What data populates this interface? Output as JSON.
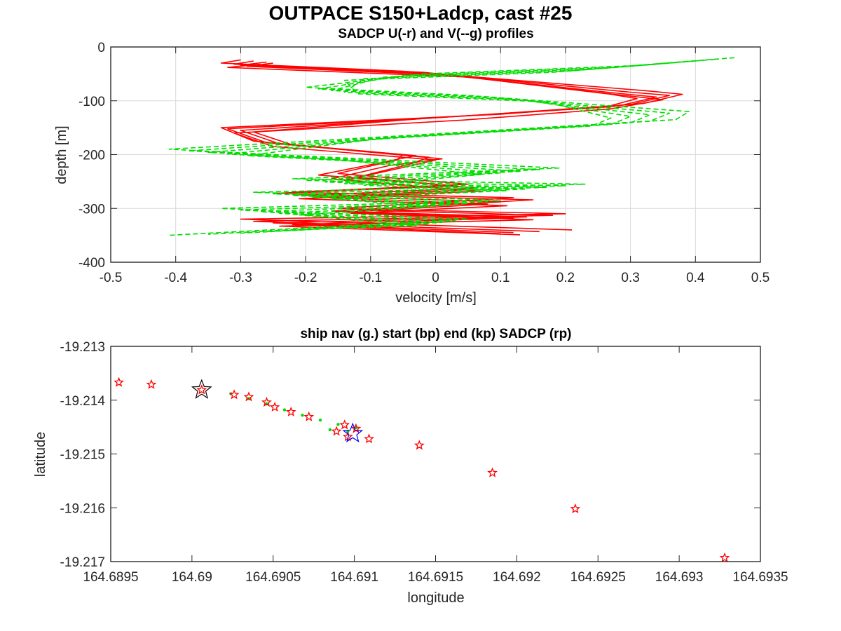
{
  "figure": {
    "title": "OUTPACE S150+Ladcp, cast #25"
  },
  "chart_data": [
    {
      "type": "line",
      "title": "SADCP U(-r) and V(--g) profiles",
      "xlabel": "velocity [m/s]",
      "ylabel": "depth [m]",
      "xlim": [
        -0.5,
        0.5
      ],
      "ylim": [
        -400,
        0
      ],
      "xticks": [
        -0.5,
        -0.4,
        -0.3,
        -0.2,
        -0.1,
        0,
        0.1,
        0.2,
        0.3,
        0.4,
        0.5
      ],
      "xtick_labels": [
        "-0.5",
        "-0.4",
        "-0.3",
        "-0.2",
        "-0.1",
        "0",
        "0.1",
        "0.2",
        "0.3",
        "0.4",
        "0.5"
      ],
      "yticks": [
        0,
        -100,
        -200,
        -300,
        -400
      ],
      "ytick_labels": [
        "0",
        "-100",
        "-200",
        "-300",
        "-400"
      ],
      "grid": true,
      "series": [
        {
          "name": "U",
          "color": "#ff0000",
          "dash": "solid",
          "profiles": [
            {
              "velocity": [
                -0.3,
                -0.33,
                -0.05,
                0.33,
                0.38,
                0.32,
                0.1,
                -0.33,
                -0.28,
                -0.05,
                -0.06,
                -0.15,
                0.05,
                -0.22,
                0.12,
                -0.15,
                0.2,
                -0.3,
                0.21
              ],
              "depth": [
                -24,
                -30,
                -45,
                -82,
                -88,
                -105,
                -125,
                -150,
                -175,
                -200,
                -210,
                -235,
                -255,
                -270,
                -280,
                -300,
                -310,
                -320,
                -340
              ]
            },
            {
              "velocity": [
                -0.28,
                -0.31,
                -0.02,
                0.3,
                0.36,
                0.3,
                0.06,
                -0.32,
                -0.26,
                -0.03,
                -0.08,
                -0.18,
                0.03,
                -0.25,
                0.15,
                -0.12,
                0.18,
                -0.28,
                0.16
              ],
              "depth": [
                -26,
                -32,
                -47,
                -84,
                -90,
                -107,
                -127,
                -152,
                -178,
                -202,
                -214,
                -238,
                -258,
                -272,
                -284,
                -303,
                -313,
                -324,
                -343
              ]
            },
            {
              "velocity": [
                -0.26,
                -0.3,
                0.0,
                0.28,
                0.34,
                0.28,
                0.02,
                -0.3,
                -0.24,
                -0.01,
                -0.04,
                -0.12,
                0.06,
                -0.2,
                0.1,
                -0.16,
                0.14,
                -0.25,
                0.12
              ],
              "depth": [
                -28,
                -34,
                -50,
                -86,
                -93,
                -110,
                -130,
                -155,
                -180,
                -205,
                -218,
                -242,
                -262,
                -276,
                -288,
                -305,
                -316,
                -327,
                -345
              ]
            },
            {
              "velocity": [
                -0.25,
                -0.29,
                0.03,
                0.27,
                0.31,
                0.26,
                -0.02,
                -0.28,
                -0.22,
                0.01,
                -0.07,
                -0.16,
                0.04,
                -0.18,
                0.08,
                -0.14,
                0.12,
                -0.22,
                0.1
              ],
              "depth": [
                -30,
                -36,
                -53,
                -88,
                -96,
                -112,
                -133,
                -158,
                -182,
                -208,
                -220,
                -245,
                -266,
                -279,
                -292,
                -307,
                -318,
                -330,
                -347
              ]
            },
            {
              "velocity": [
                -0.27,
                -0.32,
                0.05,
                0.29,
                0.35,
                0.27,
                0.04,
                -0.31,
                -0.25,
                0.0,
                -0.05,
                -0.14,
                0.07,
                -0.21,
                0.11,
                -0.13,
                0.15,
                -0.24,
                0.13
              ],
              "depth": [
                -32,
                -38,
                -56,
                -90,
                -98,
                -115,
                -136,
                -160,
                -185,
                -210,
                -224,
                -248,
                -268,
                -282,
                -295,
                -309,
                -321,
                -333,
                -349
              ]
            }
          ]
        },
        {
          "name": "V",
          "color": "#00dd00",
          "dash": "dashed",
          "profiles": [
            {
              "velocity": [
                0.46,
                0.3,
                -0.02,
                -0.2,
                0.05,
                0.39,
                0.37,
                0.02,
                -0.41,
                -0.25,
                0.19,
                -0.22,
                0.23,
                -0.28,
                0.1,
                -0.33,
                0.05,
                -0.41
              ],
              "depth": [
                -20,
                -35,
                -50,
                -75,
                -90,
                -120,
                -135,
                -160,
                -190,
                -200,
                -225,
                -245,
                -255,
                -270,
                -285,
                -300,
                -320,
                -350
              ]
            },
            {
              "velocity": [
                0.43,
                0.27,
                -0.05,
                -0.18,
                0.08,
                0.36,
                0.33,
                -0.01,
                -0.38,
                -0.22,
                0.16,
                -0.2,
                0.2,
                -0.25,
                0.08,
                -0.3,
                0.03,
                -0.35
              ],
              "depth": [
                -23,
                -38,
                -53,
                -78,
                -93,
                -123,
                -138,
                -163,
                -193,
                -203,
                -228,
                -248,
                -258,
                -273,
                -288,
                -303,
                -323,
                -348
              ]
            },
            {
              "velocity": [
                0.4,
                0.24,
                -0.08,
                -0.16,
                0.11,
                0.33,
                0.3,
                -0.04,
                -0.35,
                -0.19,
                0.13,
                -0.17,
                0.17,
                -0.22,
                0.05,
                -0.27,
                0.01,
                -0.3
              ],
              "depth": [
                -26,
                -41,
                -56,
                -81,
                -96,
                -126,
                -141,
                -166,
                -196,
                -206,
                -231,
                -251,
                -261,
                -276,
                -291,
                -306,
                -326,
                -346
              ]
            },
            {
              "velocity": [
                0.37,
                0.21,
                -0.11,
                -0.14,
                0.14,
                0.3,
                0.27,
                -0.07,
                -0.32,
                -0.16,
                0.1,
                -0.14,
                0.14,
                -0.19,
                0.02,
                -0.24,
                -0.01,
                -0.26
              ],
              "depth": [
                -29,
                -44,
                -59,
                -84,
                -99,
                -129,
                -144,
                -169,
                -199,
                -209,
                -234,
                -254,
                -264,
                -279,
                -294,
                -309,
                -329,
                -343
              ]
            },
            {
              "velocity": [
                0.34,
                0.18,
                -0.14,
                -0.12,
                0.17,
                0.27,
                0.24,
                -0.1,
                -0.29,
                -0.13,
                0.07,
                -0.11,
                0.11,
                -0.16,
                -0.01,
                -0.21,
                -0.03,
                -0.22
              ],
              "depth": [
                -32,
                -47,
                -62,
                -87,
                -102,
                -132,
                -147,
                -172,
                -202,
                -212,
                -237,
                -257,
                -267,
                -282,
                -297,
                -312,
                -332,
                -340
              ]
            }
          ]
        }
      ]
    },
    {
      "type": "scatter",
      "title": "ship nav (g.) start (bp) end (kp) SADCP (rp)",
      "xlabel": "longitude",
      "ylabel": "latitude",
      "xlim": [
        164.6895,
        164.6935
      ],
      "ylim": [
        -19.217,
        -19.213
      ],
      "xticks": [
        164.6895,
        164.69,
        164.6905,
        164.691,
        164.6915,
        164.692,
        164.6925,
        164.693,
        164.6935
      ],
      "xtick_labels": [
        "164.6895",
        "164.69",
        "164.6905",
        "164.691",
        "164.6915",
        "164.692",
        "164.6925",
        "164.693",
        "164.6935"
      ],
      "yticks": [
        -19.213,
        -19.214,
        -19.215,
        -19.216,
        -19.217
      ],
      "ytick_labels": [
        "-19.213",
        "-19.214",
        "-19.215",
        "-19.216",
        "-19.217"
      ],
      "grid": false,
      "ship_nav": {
        "color": "#00dd00",
        "lon": [
          164.69024,
          164.69035,
          164.69046,
          164.69057,
          164.69068,
          164.69079,
          164.6909,
          164.69101,
          164.69085,
          164.69096
        ],
        "lat": [
          -19.21388,
          -19.21397,
          -19.21407,
          -19.21418,
          -19.21428,
          -19.21437,
          -19.21445,
          -19.21451,
          -19.21455,
          -19.21458
        ]
      },
      "start_point": {
        "color": "#0000ff",
        "lon": 164.69099,
        "lat": -19.21462
      },
      "end_point": {
        "color": "#000000",
        "lon": 164.69006,
        "lat": -19.21381
      },
      "sadcp_points": {
        "color": "#ff0000",
        "lon": [
          164.68955,
          164.68975,
          164.69006,
          164.69026,
          164.69035,
          164.69046,
          164.69051,
          164.69061,
          164.69072,
          164.69089,
          164.69094,
          164.69096,
          164.69101,
          164.69109,
          164.6914,
          164.69185,
          164.69236,
          164.69328
        ],
        "lat": [
          -19.21367,
          -19.21371,
          -19.21381,
          -19.2139,
          -19.21394,
          -19.21404,
          -19.21413,
          -19.21422,
          -19.21431,
          -19.21458,
          -19.21446,
          -19.21468,
          -19.21453,
          -19.21472,
          -19.21484,
          -19.21535,
          -19.21602,
          -19.21693
        ]
      }
    }
  ]
}
